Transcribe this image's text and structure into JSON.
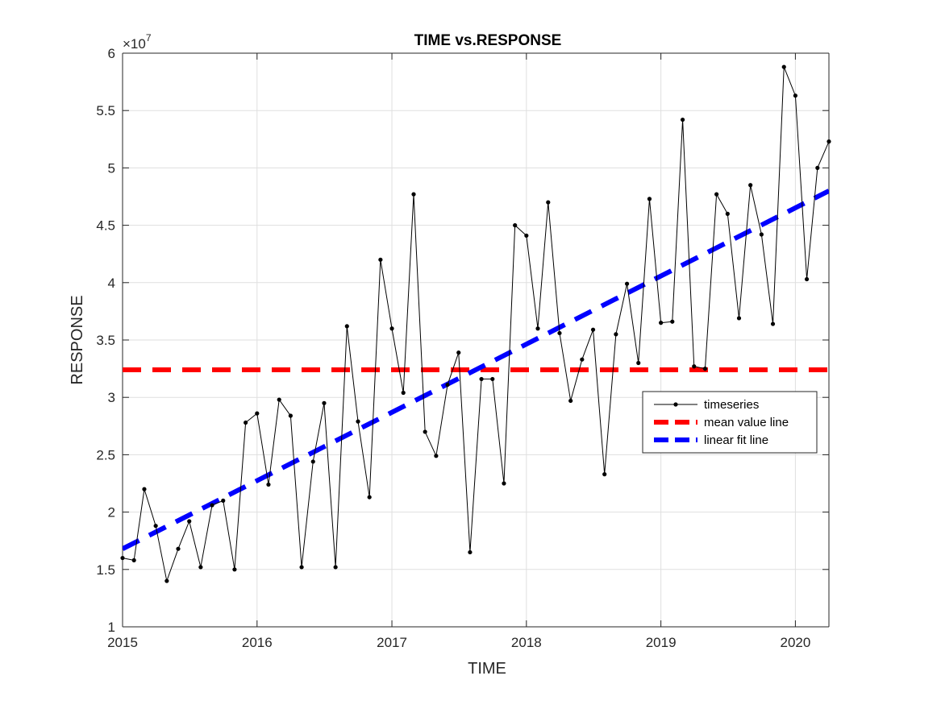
{
  "chart_data": {
    "type": "line",
    "title": "TIME vs.RESPONSE",
    "xlabel": "TIME",
    "ylabel": "RESPONSE",
    "y_exponent_label": "×10",
    "y_exponent_power": "7",
    "y_multiplier": 10000000,
    "xlim": [
      "2015-01-01",
      "2020-04-01"
    ],
    "ylim": [
      1,
      6
    ],
    "x_ticks": [
      {
        "date": "2015-01-01",
        "label": "2015"
      },
      {
        "date": "2016-01-01",
        "label": "2016"
      },
      {
        "date": "2017-01-01",
        "label": "2017"
      },
      {
        "date": "2018-01-01",
        "label": "2018"
      },
      {
        "date": "2019-01-01",
        "label": "2019"
      },
      {
        "date": "2020-01-01",
        "label": "2020"
      }
    ],
    "y_ticks": [
      {
        "value": 1,
        "label": "1"
      },
      {
        "value": 1.5,
        "label": "1.5"
      },
      {
        "value": 2,
        "label": "2"
      },
      {
        "value": 2.5,
        "label": "2.5"
      },
      {
        "value": 3,
        "label": "3"
      },
      {
        "value": 3.5,
        "label": "3.5"
      },
      {
        "value": 4,
        "label": "4"
      },
      {
        "value": 4.5,
        "label": "4.5"
      },
      {
        "value": 5,
        "label": "5"
      },
      {
        "value": 5.5,
        "label": "5.5"
      },
      {
        "value": 6,
        "label": "6"
      }
    ],
    "grid": true,
    "legend_position": "right",
    "series": [
      {
        "name": "timeseries",
        "style": "black line with dot markers",
        "color": "#000000",
        "x": [
          "2015-01",
          "2015-02",
          "2015-03",
          "2015-04",
          "2015-05",
          "2015-06",
          "2015-07",
          "2015-08",
          "2015-09",
          "2015-10",
          "2015-11",
          "2015-12",
          "2016-01",
          "2016-02",
          "2016-03",
          "2016-04",
          "2016-05",
          "2016-06",
          "2016-07",
          "2016-08",
          "2016-09",
          "2016-10",
          "2016-11",
          "2016-12",
          "2017-01",
          "2017-02",
          "2017-03",
          "2017-04",
          "2017-05",
          "2017-06",
          "2017-07",
          "2017-08",
          "2017-09",
          "2017-10",
          "2017-11",
          "2017-12",
          "2018-01",
          "2018-02",
          "2018-03",
          "2018-04",
          "2018-05",
          "2018-06",
          "2018-07",
          "2018-08",
          "2018-09",
          "2018-10",
          "2018-11",
          "2018-12",
          "2019-01",
          "2019-02",
          "2019-03",
          "2019-04",
          "2019-05",
          "2019-06",
          "2019-07",
          "2019-08",
          "2019-09",
          "2019-10",
          "2019-11",
          "2019-12",
          "2020-01",
          "2020-02",
          "2020-03",
          "2020-04"
        ],
        "y": [
          1.6,
          1.58,
          2.2,
          1.88,
          1.4,
          1.68,
          1.92,
          1.52,
          2.06,
          2.1,
          1.5,
          2.78,
          2.86,
          2.24,
          2.98,
          2.84,
          1.52,
          2.44,
          2.95,
          1.52,
          3.62,
          2.79,
          2.13,
          4.2,
          3.6,
          3.04,
          4.77,
          2.7,
          2.49,
          3.11,
          3.39,
          1.65,
          3.16,
          3.16,
          2.25,
          4.5,
          4.41,
          3.6,
          4.7,
          3.56,
          2.97,
          3.33,
          3.59,
          2.33,
          3.55,
          3.99,
          3.3,
          4.73,
          3.65,
          3.66,
          5.42,
          3.27,
          3.25,
          4.77,
          4.6,
          3.69,
          4.85,
          4.42,
          3.64,
          5.88,
          5.63,
          4.03,
          5.0,
          5.23
        ]
      },
      {
        "name": "mean value line",
        "style": "red dashed",
        "color": "#ff0000",
        "x": [
          "2015-01",
          "2020-04"
        ],
        "y": [
          3.24,
          3.24
        ]
      },
      {
        "name": "linear fit line",
        "style": "blue dashed",
        "color": "#0000ff",
        "x": [
          "2015-01",
          "2020-04"
        ],
        "y": [
          1.68,
          4.8
        ]
      }
    ]
  }
}
